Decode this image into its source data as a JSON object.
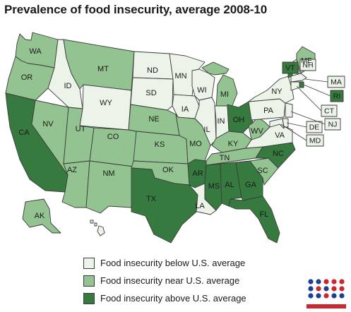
{
  "title": "Prevalence of food insecurity, average 2008-10",
  "colors": {
    "below": "#ecf4ea",
    "near": "#93c390",
    "above": "#367a3f",
    "border": "#3c3c3c"
  },
  "legend": [
    {
      "category": "below",
      "label": "Food insecurity below U.S. average"
    },
    {
      "category": "near",
      "label": "Food insecurity near U.S. average"
    },
    {
      "category": "above",
      "label": "Food insecurity above U.S. average"
    }
  ],
  "states": {
    "WA": "near",
    "OR": "near",
    "CA": "above",
    "NV": "near",
    "ID": "below",
    "MT": "near",
    "WY": "below",
    "UT": "near",
    "AZ": "near",
    "CO": "near",
    "NM": "near",
    "ND": "below",
    "SD": "below",
    "NE": "near",
    "KS": "near",
    "OK": "near",
    "TX": "above",
    "MN": "below",
    "IA": "below",
    "MO": "near",
    "AR": "above",
    "LA": "below",
    "WI": "below",
    "IL": "below",
    "MI": "near",
    "IN": "below",
    "OH": "above",
    "KY": "near",
    "TN": "near",
    "MS": "above",
    "AL": "above",
    "GA": "above",
    "FL": "above",
    "SC": "near",
    "NC": "above",
    "VA": "below",
    "WV": "near",
    "PA": "below",
    "NY": "below",
    "ME": "near",
    "VT": "above",
    "NH": "below",
    "MA": "below",
    "RI": "above",
    "CT": "below",
    "NJ": "below",
    "DE": "below",
    "MD": "below",
    "AK": "near",
    "HI": "below"
  },
  "logo_colors": [
    "#1f3f8f",
    "#c8282e"
  ]
}
